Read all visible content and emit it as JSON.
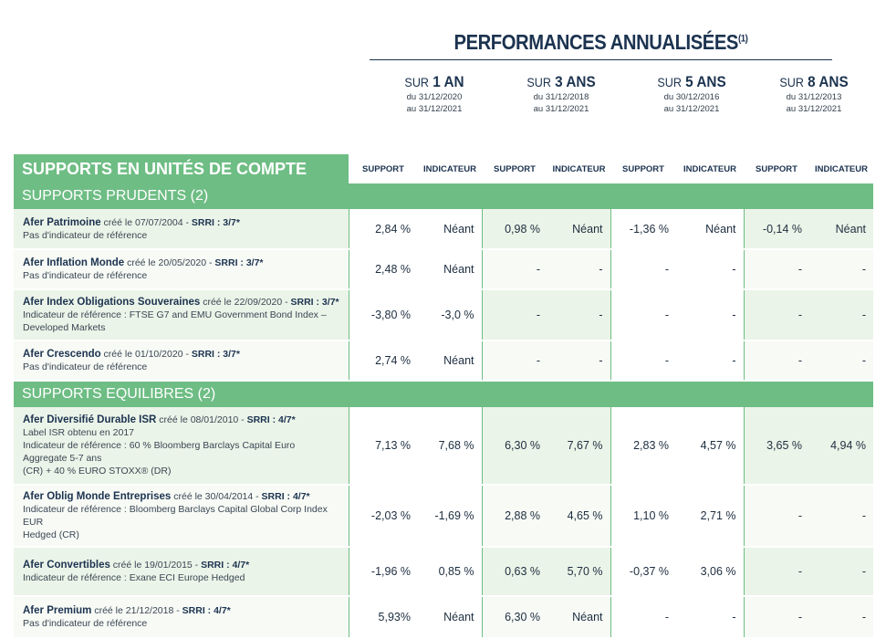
{
  "title": "PERFORMANCES ANNUALISÉES",
  "title_note": "(1)",
  "periods": [
    {
      "prefix": "SUR",
      "num": "1 AN",
      "from": "du 31/12/2020",
      "to": "au 31/12/2021"
    },
    {
      "prefix": "SUR",
      "num": "3 ANS",
      "from": "du 31/12/2018",
      "to": "au 31/12/2021"
    },
    {
      "prefix": "SUR",
      "num": "5 ANS",
      "from": "du 30/12/2016",
      "to": "au 31/12/2021"
    },
    {
      "prefix": "SUR",
      "num": "8 ANS",
      "from": "du 31/12/2013",
      "to": "au 31/12/2021"
    }
  ],
  "table_title": "SUPPORTS EN UNITÉS DE COMPTE",
  "col_support": "SUPPORT",
  "col_indicateur": "INDICATEUR",
  "sections": [
    {
      "name": "SUPPORTS PRUDENTS (2)",
      "rows": [
        {
          "name": "Afer Patrimoine",
          "created": " créé le 07/07/2004 - ",
          "srri": "SRRI : 3/7*",
          "lines": [
            "Pas d'indicateur de référence"
          ],
          "values": [
            "2,84 %",
            "Néant",
            "0,98 %",
            "Néant",
            "-1,36 %",
            "Néant",
            "-0,14 %",
            "Néant"
          ]
        },
        {
          "name": "Afer Inflation Monde",
          "created": " créé le 20/05/2020 - ",
          "srri": "SRRI : 3/7*",
          "lines": [
            "Pas d'indicateur de référence"
          ],
          "values": [
            "2,48 %",
            "Néant",
            "-",
            "-",
            "-",
            "-",
            "-",
            "-"
          ]
        },
        {
          "name": "Afer Index Obligations Souveraines",
          "created": " créé le 22/09/2020 - ",
          "srri": "SRRI : 3/7*",
          "lines": [
            "Indicateur de référence : FTSE G7 and EMU Government Bond Index –",
            "Developed Markets"
          ],
          "values": [
            "-3,80 %",
            "-3,0 %",
            "-",
            "-",
            "-",
            "-",
            "-",
            "-"
          ]
        },
        {
          "name": "Afer Crescendo",
          "created": " créé le 01/10/2020 - ",
          "srri": "SRRI : 3/7*",
          "lines": [
            "Pas d'indicateur de référence"
          ],
          "values": [
            "2,74 %",
            "Néant",
            "-",
            "-",
            "-",
            "-",
            "-",
            "-"
          ]
        }
      ]
    },
    {
      "name": "SUPPORTS EQUILIBRES (2)",
      "rows": [
        {
          "name": "Afer Diversifié Durable ISR",
          "created": " créé le 08/01/2010 - ",
          "srri": "SRRI : 4/7*",
          "lines": [
            "Label ISR obtenu en 2017",
            "Indicateur de référence : 60 % Bloomberg Barclays Capital Euro Aggregate 5-7 ans",
            "(CR) + 40 % EURO STOXX® (DR)"
          ],
          "values": [
            "7,13 %",
            "7,68 %",
            "6,30 %",
            "7,67 %",
            "2,83 %",
            "4,57 %",
            "3,65 %",
            "4,94 %"
          ]
        },
        {
          "name": "Afer Oblig Monde Entreprises",
          "created": " créé le 30/04/2014 - ",
          "srri": "SRRI : 4/7*",
          "lines": [
            "Indicateur de référence : Bloomberg Barclays Capital Global Corp Index EUR",
            "Hedged (CR)"
          ],
          "values": [
            "-2,03 %",
            "-1,69 %",
            "2,88 %",
            "4,65 %",
            "1,10 %",
            "2,71 %",
            "-",
            "-"
          ]
        },
        {
          "name": "Afer Convertibles",
          "created": " créé le 19/01/2015 - ",
          "srri": "SRRI : 4/7*",
          "lines": [
            "Indicateur de référence :  Exane ECI Europe Hedged"
          ],
          "values": [
            "-1,96 %",
            "0,85 %",
            "0,63 %",
            "5,70 %",
            "-0,37 %",
            "3,06 %",
            "-",
            "-"
          ]
        },
        {
          "name": "Afer Premium",
          "created": " créé le 21/12/2018 - ",
          "srri": "SRRI : 4/7*",
          "lines": [
            "Pas d'indicateur de référence"
          ],
          "values": [
            "5,93%",
            "Néant",
            "6,30 %",
            "Néant",
            "-",
            "-",
            "-",
            "-"
          ]
        }
      ]
    }
  ],
  "colors": {
    "green": "#6ebd84",
    "navy": "#1c3350",
    "light": "#ebf4e8"
  }
}
